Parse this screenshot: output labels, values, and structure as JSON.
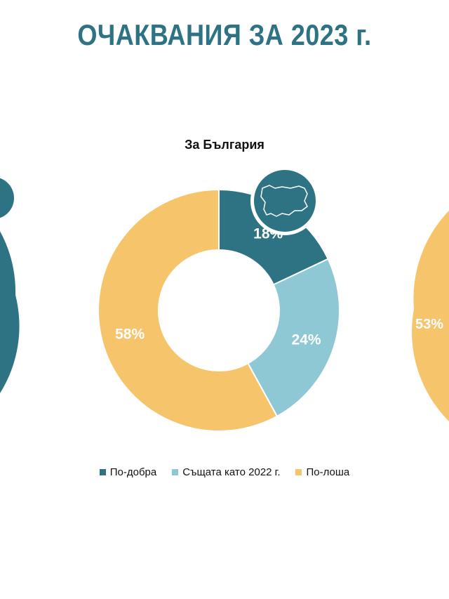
{
  "title": "ОЧАКВАНИЯ ЗА 2023 г.",
  "colors": {
    "title": "#2e7384",
    "better": "#2e7384",
    "same": "#8ec8d4",
    "worse": "#f5c46b"
  },
  "legend": [
    {
      "label": "По-добра",
      "color": "#2e7384"
    },
    {
      "label": "Същата като 2022 г.",
      "color": "#8ec8d4"
    },
    {
      "label": "По-лоша",
      "color": "#f5c46b"
    }
  ],
  "icons": {
    "center_badge": "bulgaria-map-icon"
  },
  "chart_data": [
    {
      "type": "pie",
      "title": "За България",
      "categories": [
        "По-добра",
        "Същата като 2022 г.",
        "По-лоша"
      ],
      "values": [
        18,
        24,
        58
      ],
      "labels": [
        "18%",
        "24%",
        "58%"
      ],
      "colors": [
        "#2e7384",
        "#8ec8d4",
        "#f5c46b"
      ]
    },
    {
      "type": "pie",
      "title": "",
      "partially_visible": true,
      "visible_labels": [
        "53%"
      ]
    }
  ]
}
